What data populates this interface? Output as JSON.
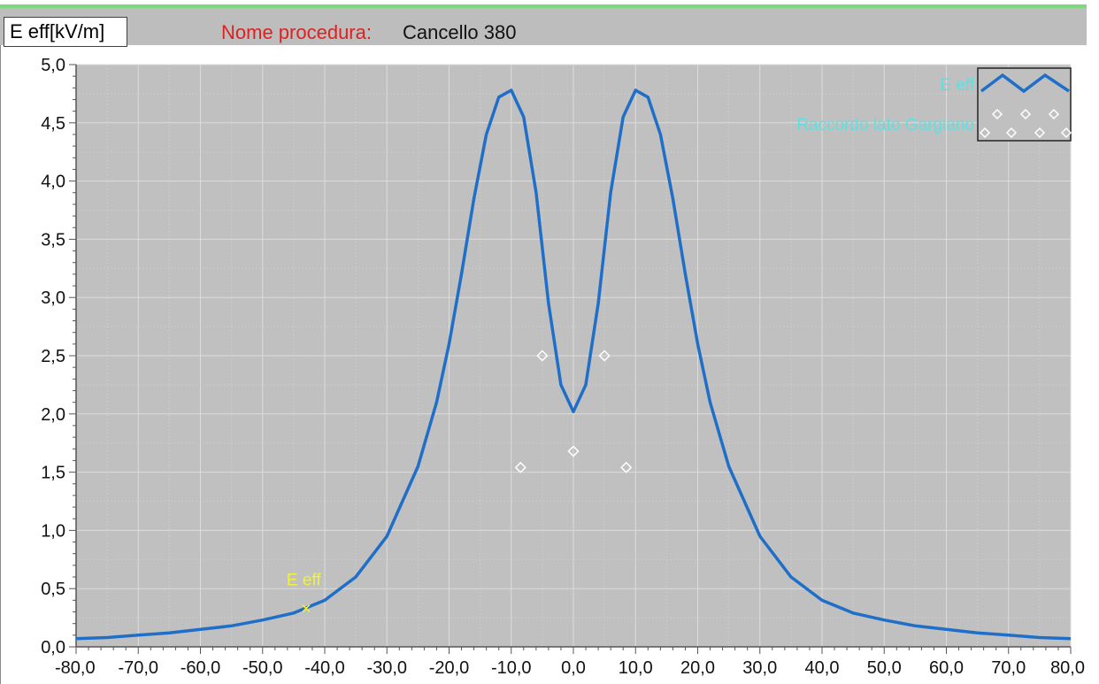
{
  "header": {
    "unit_label": "E eff[kV/m]",
    "procedure_label": "Nome procedura:",
    "procedure_value": "Cancello 380"
  },
  "colors": {
    "plot_background": "#c0c0c0",
    "curve": "#1f6fc9",
    "points": "#ffffff",
    "cursor_label": "#f2f23a",
    "legend_text": "#5fe0e0",
    "procedure_label": "#e02020"
  },
  "chart_data": {
    "type": "line",
    "xlim": [
      -80,
      80
    ],
    "ylim": [
      0,
      5
    ],
    "x_ticks": [
      "-80,0",
      "-70,0",
      "-60,0",
      "-50,0",
      "-40,0",
      "-30,0",
      "-20,0",
      "-10,0",
      "0,0",
      "10,0",
      "20,0",
      "30,0",
      "40,0",
      "50,0",
      "60,0",
      "70,0",
      "80,0"
    ],
    "y_ticks": [
      "0,0",
      "0,5",
      "1,0",
      "1,5",
      "2,0",
      "2,5",
      "3,0",
      "3,5",
      "4,0",
      "4,5",
      "5,0"
    ],
    "grid": true,
    "legend_position": "top-right",
    "series": [
      {
        "name": "E eff",
        "x": [
          -80,
          -75,
          -70,
          -65,
          -60,
          -55,
          -50,
          -45,
          -40,
          -35,
          -30,
          -25,
          -22,
          -20,
          -18,
          -16,
          -14,
          -12,
          -10,
          -8,
          -6,
          -4,
          -2,
          0,
          2,
          4,
          6,
          8,
          10,
          12,
          14,
          16,
          18,
          20,
          22,
          25,
          30,
          35,
          40,
          45,
          50,
          55,
          60,
          65,
          70,
          75,
          80
        ],
        "y": [
          0.07,
          0.08,
          0.1,
          0.12,
          0.15,
          0.18,
          0.23,
          0.29,
          0.4,
          0.6,
          0.95,
          1.55,
          2.1,
          2.6,
          3.2,
          3.85,
          4.4,
          4.72,
          4.78,
          4.55,
          3.9,
          2.95,
          2.25,
          2.02,
          2.25,
          2.95,
          3.9,
          4.55,
          4.78,
          4.72,
          4.4,
          3.85,
          3.2,
          2.6,
          2.1,
          1.55,
          0.95,
          0.6,
          0.4,
          0.29,
          0.23,
          0.18,
          0.15,
          0.12,
          0.1,
          0.08,
          0.07
        ]
      },
      {
        "name": "Raccordo lato Gargiano",
        "type": "scatter",
        "x": [
          -8.5,
          -5,
          0,
          5,
          8.5
        ],
        "y": [
          1.54,
          2.5,
          1.68,
          2.5,
          1.54
        ]
      }
    ],
    "cursor": {
      "label": "E eff",
      "x": -43,
      "y": 0.33
    }
  }
}
